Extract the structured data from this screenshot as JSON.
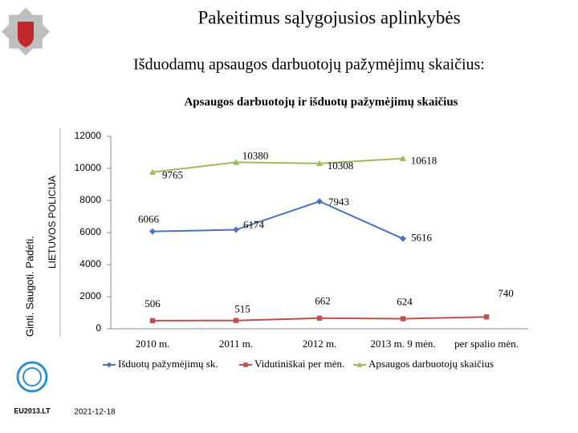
{
  "header": {
    "title": "Pakeitimus sąlygojusios aplinkybės",
    "subtitle": "Išduodamų apsaugos darbuotojų pažymėjimų skaičius:"
  },
  "sidebar": {
    "motto": "Ginti. Saugoti. Padėti.",
    "organization": "LIETUVOS POLICIJA",
    "eu_logo": "EU2013.LT"
  },
  "footer": {
    "date": "2021-12-18"
  },
  "chart_data": {
    "type": "line",
    "title": "Apsaugos darbuotojų ir išduotų pažymėjimų skaičius",
    "categories": [
      "2010 m.",
      "2011 m.",
      "2012 m.",
      "2013 m. 9 mėn.",
      "per spalio mėn."
    ],
    "series": [
      {
        "name": "Išduotų pažymėjimų sk.",
        "color": "#4a72c0",
        "marker": "diamond",
        "values": [
          6066,
          6174,
          7943,
          5616,
          null
        ]
      },
      {
        "name": "Vidutiniškai per mėn.",
        "color": "#c0504d",
        "marker": "square",
        "values": [
          506,
          515,
          662,
          624,
          740
        ]
      },
      {
        "name": "Apsaugos darbuotojų skaičius",
        "color": "#9bbb59",
        "marker": "triangle",
        "values": [
          9765,
          10380,
          10308,
          10618,
          null
        ]
      }
    ],
    "ylim": [
      0,
      12000
    ],
    "yticks": [
      0,
      2000,
      4000,
      6000,
      8000,
      10000,
      12000
    ],
    "grid": false,
    "legend": "bottom"
  }
}
